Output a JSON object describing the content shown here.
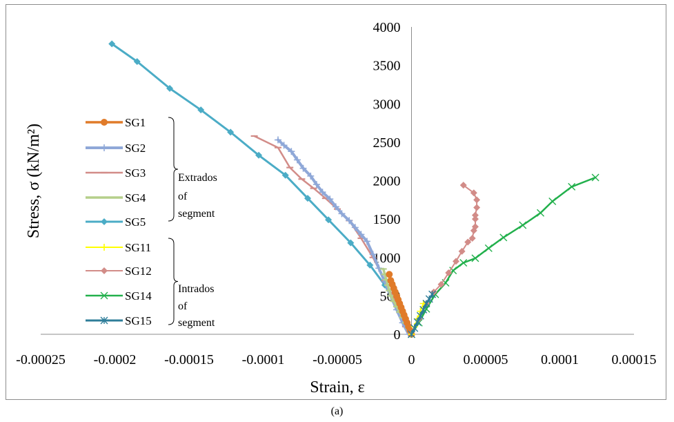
{
  "caption": "(a)",
  "chart_data": {
    "type": "line",
    "xlabel": "Strain, ε",
    "ylabel": "Stress, σ (kN/m²)",
    "xlim": [
      -0.00025,
      0.00015
    ],
    "ylim": [
      0,
      4000
    ],
    "x_ticks": [
      "-0.00025",
      "-0.0002",
      "-0.00015",
      "-0.0001",
      "-0.00005",
      "0",
      "0.00005",
      "0.0001",
      "0.00015"
    ],
    "y_ticks": [
      "0",
      "500",
      "1000",
      "1500",
      "2000",
      "2500",
      "3000",
      "3500",
      "4000"
    ],
    "grid": false,
    "legend_position": "left",
    "legend_groups": [
      {
        "series": [
          "SG1",
          "SG2",
          "SG3",
          "SG4",
          "SG5"
        ],
        "label": [
          "Extrados",
          "of",
          "segment"
        ]
      },
      {
        "series": [
          "SG11",
          "SG12",
          "SG14",
          "SG15"
        ],
        "label": [
          "Intrados",
          "of",
          "segment"
        ]
      }
    ],
    "series": [
      {
        "name": "SG1",
        "color": "#e07b2a",
        "marker": "circle",
        "width": 3.5,
        "x": [
          0,
          -1e-06,
          -2e-06,
          -3e-06,
          -4e-06,
          -5e-06,
          -6e-06,
          -7e-06,
          -8e-06,
          -9e-06,
          -1e-05,
          -1.1e-05,
          -1.2e-05,
          -1.3e-05,
          -1.4e-05,
          -1.5e-05
        ],
        "y": [
          0,
          50,
          100,
          150,
          200,
          250,
          300,
          350,
          400,
          450,
          500,
          550,
          600,
          650,
          700,
          780
        ]
      },
      {
        "name": "SG2",
        "color": "#8fa8d8",
        "marker": "plus",
        "width": 4,
        "x": [
          -9e-05,
          -8.6e-05,
          -8.1e-05,
          -7.7e-05,
          -7.3e-05,
          -6.8e-05,
          -6.4e-05,
          -6e-05,
          -5.5e-05,
          -5.1e-05,
          -4.7e-05,
          -4.2e-05,
          -3.8e-05,
          -3.4e-05,
          -3e-05,
          -2.6e-05,
          -2.2e-05,
          -1.8e-05,
          -1.4e-05,
          -1e-05,
          -6e-06,
          -2e-06
        ],
        "y": [
          2530,
          2460,
          2380,
          2270,
          2160,
          2060,
          1950,
          1850,
          1760,
          1660,
          1570,
          1480,
          1390,
          1300,
          1210,
          1040,
          860,
          680,
          500,
          320,
          150,
          0
        ]
      },
      {
        "name": "SG3",
        "color": "#d28c88",
        "marker": "dash",
        "width": 2.5,
        "x": [
          -0.000106,
          -9e-05,
          -8.2e-05,
          -7.4e-05,
          -6.6e-05,
          -5.8e-05,
          -5e-05,
          -4.2e-05,
          -3.4e-05,
          -2.6e-05,
          -1.8e-05,
          -1e-05,
          -4e-06
        ],
        "y": [
          2580,
          2430,
          2170,
          2020,
          1900,
          1770,
          1630,
          1480,
          1250,
          1000,
          700,
          400,
          100
        ]
      },
      {
        "name": "SG4",
        "color": "#b5cf8a",
        "marker": "dash",
        "width": 3.5,
        "x": [
          -1.9e-05,
          -1.8e-05,
          -1.7e-05,
          -1.6e-05,
          -1.5e-05,
          -1.4e-05,
          -1.2e-05,
          -1e-05,
          -8e-06,
          -6e-06,
          -4e-06,
          -2e-06
        ],
        "y": [
          850,
          780,
          710,
          640,
          570,
          500,
          430,
          360,
          290,
          220,
          150,
          80
        ]
      },
      {
        "name": "SG5",
        "color": "#4bacc6",
        "marker": "diamond",
        "width": 3,
        "x": [
          -0.000202,
          -0.000185,
          -0.000163,
          -0.000142,
          -0.000122,
          -0.000103,
          -8.5e-05,
          -7e-05,
          -5.6e-05,
          -4.1e-05,
          -2.8e-05,
          -1.8e-05,
          -9e-06,
          -3e-06
        ],
        "y": [
          3780,
          3550,
          3200,
          2920,
          2630,
          2330,
          2070,
          1770,
          1490,
          1190,
          900,
          640,
          330,
          100
        ]
      },
      {
        "name": "SG11",
        "color": "#ffff00",
        "marker": "plus",
        "width": 2,
        "x": [
          0,
          2e-06,
          4e-06,
          6e-06,
          8e-06
        ],
        "y": [
          0,
          100,
          200,
          300,
          400
        ]
      },
      {
        "name": "SG12",
        "color": "#d28c88",
        "marker": "diamond",
        "width": 2,
        "x": [
          0,
          5e-06,
          1e-05,
          1.5e-05,
          2e-05,
          2.5e-05,
          3e-05,
          3.4e-05,
          3.8e-05,
          4.1e-05,
          4.2e-05,
          4.3e-05,
          4.3e-05,
          4.3e-05,
          4.4e-05,
          4.4e-05,
          4.2e-05,
          3.5e-05
        ],
        "y": [
          0,
          200,
          400,
          550,
          650,
          800,
          950,
          1080,
          1200,
          1250,
          1350,
          1400,
          1500,
          1550,
          1650,
          1750,
          1840,
          1940
        ]
      },
      {
        "name": "SG14",
        "color": "#22b04c",
        "marker": "x",
        "width": 2.5,
        "x": [
          0,
          5e-06,
          1e-05,
          1.6e-05,
          2.3e-05,
          2.8e-05,
          3.5e-05,
          4.3e-05,
          5.2e-05,
          6.2e-05,
          7.5e-05,
          8.7e-05,
          9.5e-05,
          0.000108,
          0.000124
        ],
        "y": [
          0,
          150,
          330,
          520,
          670,
          830,
          930,
          990,
          1120,
          1260,
          1420,
          1580,
          1730,
          1920,
          2040
        ]
      },
      {
        "name": "SG15",
        "color": "#2e7d99",
        "marker": "star",
        "width": 3,
        "x": [
          0,
          2e-06,
          4e-06,
          6e-06,
          8e-06,
          1e-05,
          1.2e-05,
          1.4e-05
        ],
        "y": [
          0,
          80,
          160,
          240,
          320,
          400,
          460,
          520
        ]
      }
    ]
  }
}
